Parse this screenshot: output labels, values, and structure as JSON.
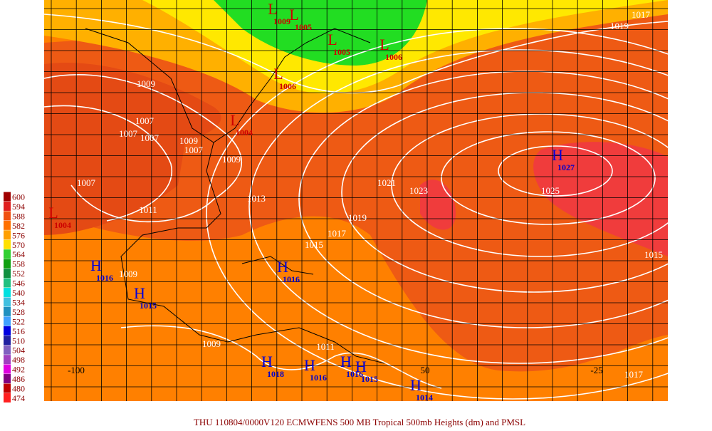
{
  "legend": [
    {
      "label": 600,
      "color": "#a00000"
    },
    {
      "label": 594,
      "color": "#e02020"
    },
    {
      "label": 588,
      "color": "#f05010"
    },
    {
      "label": 582,
      "color": "#ff7000"
    },
    {
      "label": 576,
      "color": "#ffa000"
    },
    {
      "label": 570,
      "color": "#ffe000"
    },
    {
      "label": 564,
      "color": "#30d030"
    },
    {
      "label": 558,
      "color": "#10a010"
    },
    {
      "label": 552,
      "color": "#109040"
    },
    {
      "label": 546,
      "color": "#20c080"
    },
    {
      "label": 540,
      "color": "#00e0e0"
    },
    {
      "label": 534,
      "color": "#40c0e0"
    },
    {
      "label": 528,
      "color": "#2090c0"
    },
    {
      "label": 522,
      "color": "#40a0ff"
    },
    {
      "label": 516,
      "color": "#0000e0"
    },
    {
      "label": 510,
      "color": "#2020a0"
    },
    {
      "label": 504,
      "color": "#8060c0"
    },
    {
      "label": 498,
      "color": "#a040c0"
    },
    {
      "label": 492,
      "color": "#e000e0"
    },
    {
      "label": 486,
      "color": "#800080"
    },
    {
      "label": 480,
      "color": "#c00000"
    },
    {
      "label": 474,
      "color": "#ff2020"
    }
  ],
  "highs": [
    {
      "letter": "H",
      "pressure": "1027"
    },
    {
      "letter": "H",
      "pressure": "1016"
    },
    {
      "letter": "H",
      "pressure": "1015"
    },
    {
      "letter": "H",
      "pressure": "1016"
    },
    {
      "letter": "H",
      "pressure": "1018"
    },
    {
      "letter": "H",
      "pressure": "1016"
    },
    {
      "letter": "H",
      "pressure": "1016"
    },
    {
      "letter": "H",
      "pressure": "1015"
    },
    {
      "letter": "H",
      "pressure": "1014"
    }
  ],
  "lows": [
    {
      "letter": "L",
      "pressure": "1009"
    },
    {
      "letter": "L",
      "pressure": "1005"
    },
    {
      "letter": "L",
      "pressure": "1005"
    },
    {
      "letter": "L",
      "pressure": "1006"
    },
    {
      "letter": "L",
      "pressure": "1006"
    },
    {
      "letter": "L",
      "pressure": "1004"
    },
    {
      "letter": "L",
      "pressure": "1004"
    }
  ],
  "isobar_labels": [
    "1017",
    "1019",
    "1009",
    "1007",
    "1007",
    "1007",
    "1009",
    "1007",
    "1009",
    "1021",
    "1023",
    "1025",
    "1013",
    "1011",
    "1019",
    "1017",
    "1015",
    "1015",
    "1009",
    "1011",
    "1009",
    "1017",
    "1007"
  ],
  "longitude_labels": [
    "-100",
    "50",
    "-25"
  ],
  "caption": "THU 110804/0000V120  ECMWFENS  500 MB Tropical 500mb Heights (dm) and PMSL"
}
